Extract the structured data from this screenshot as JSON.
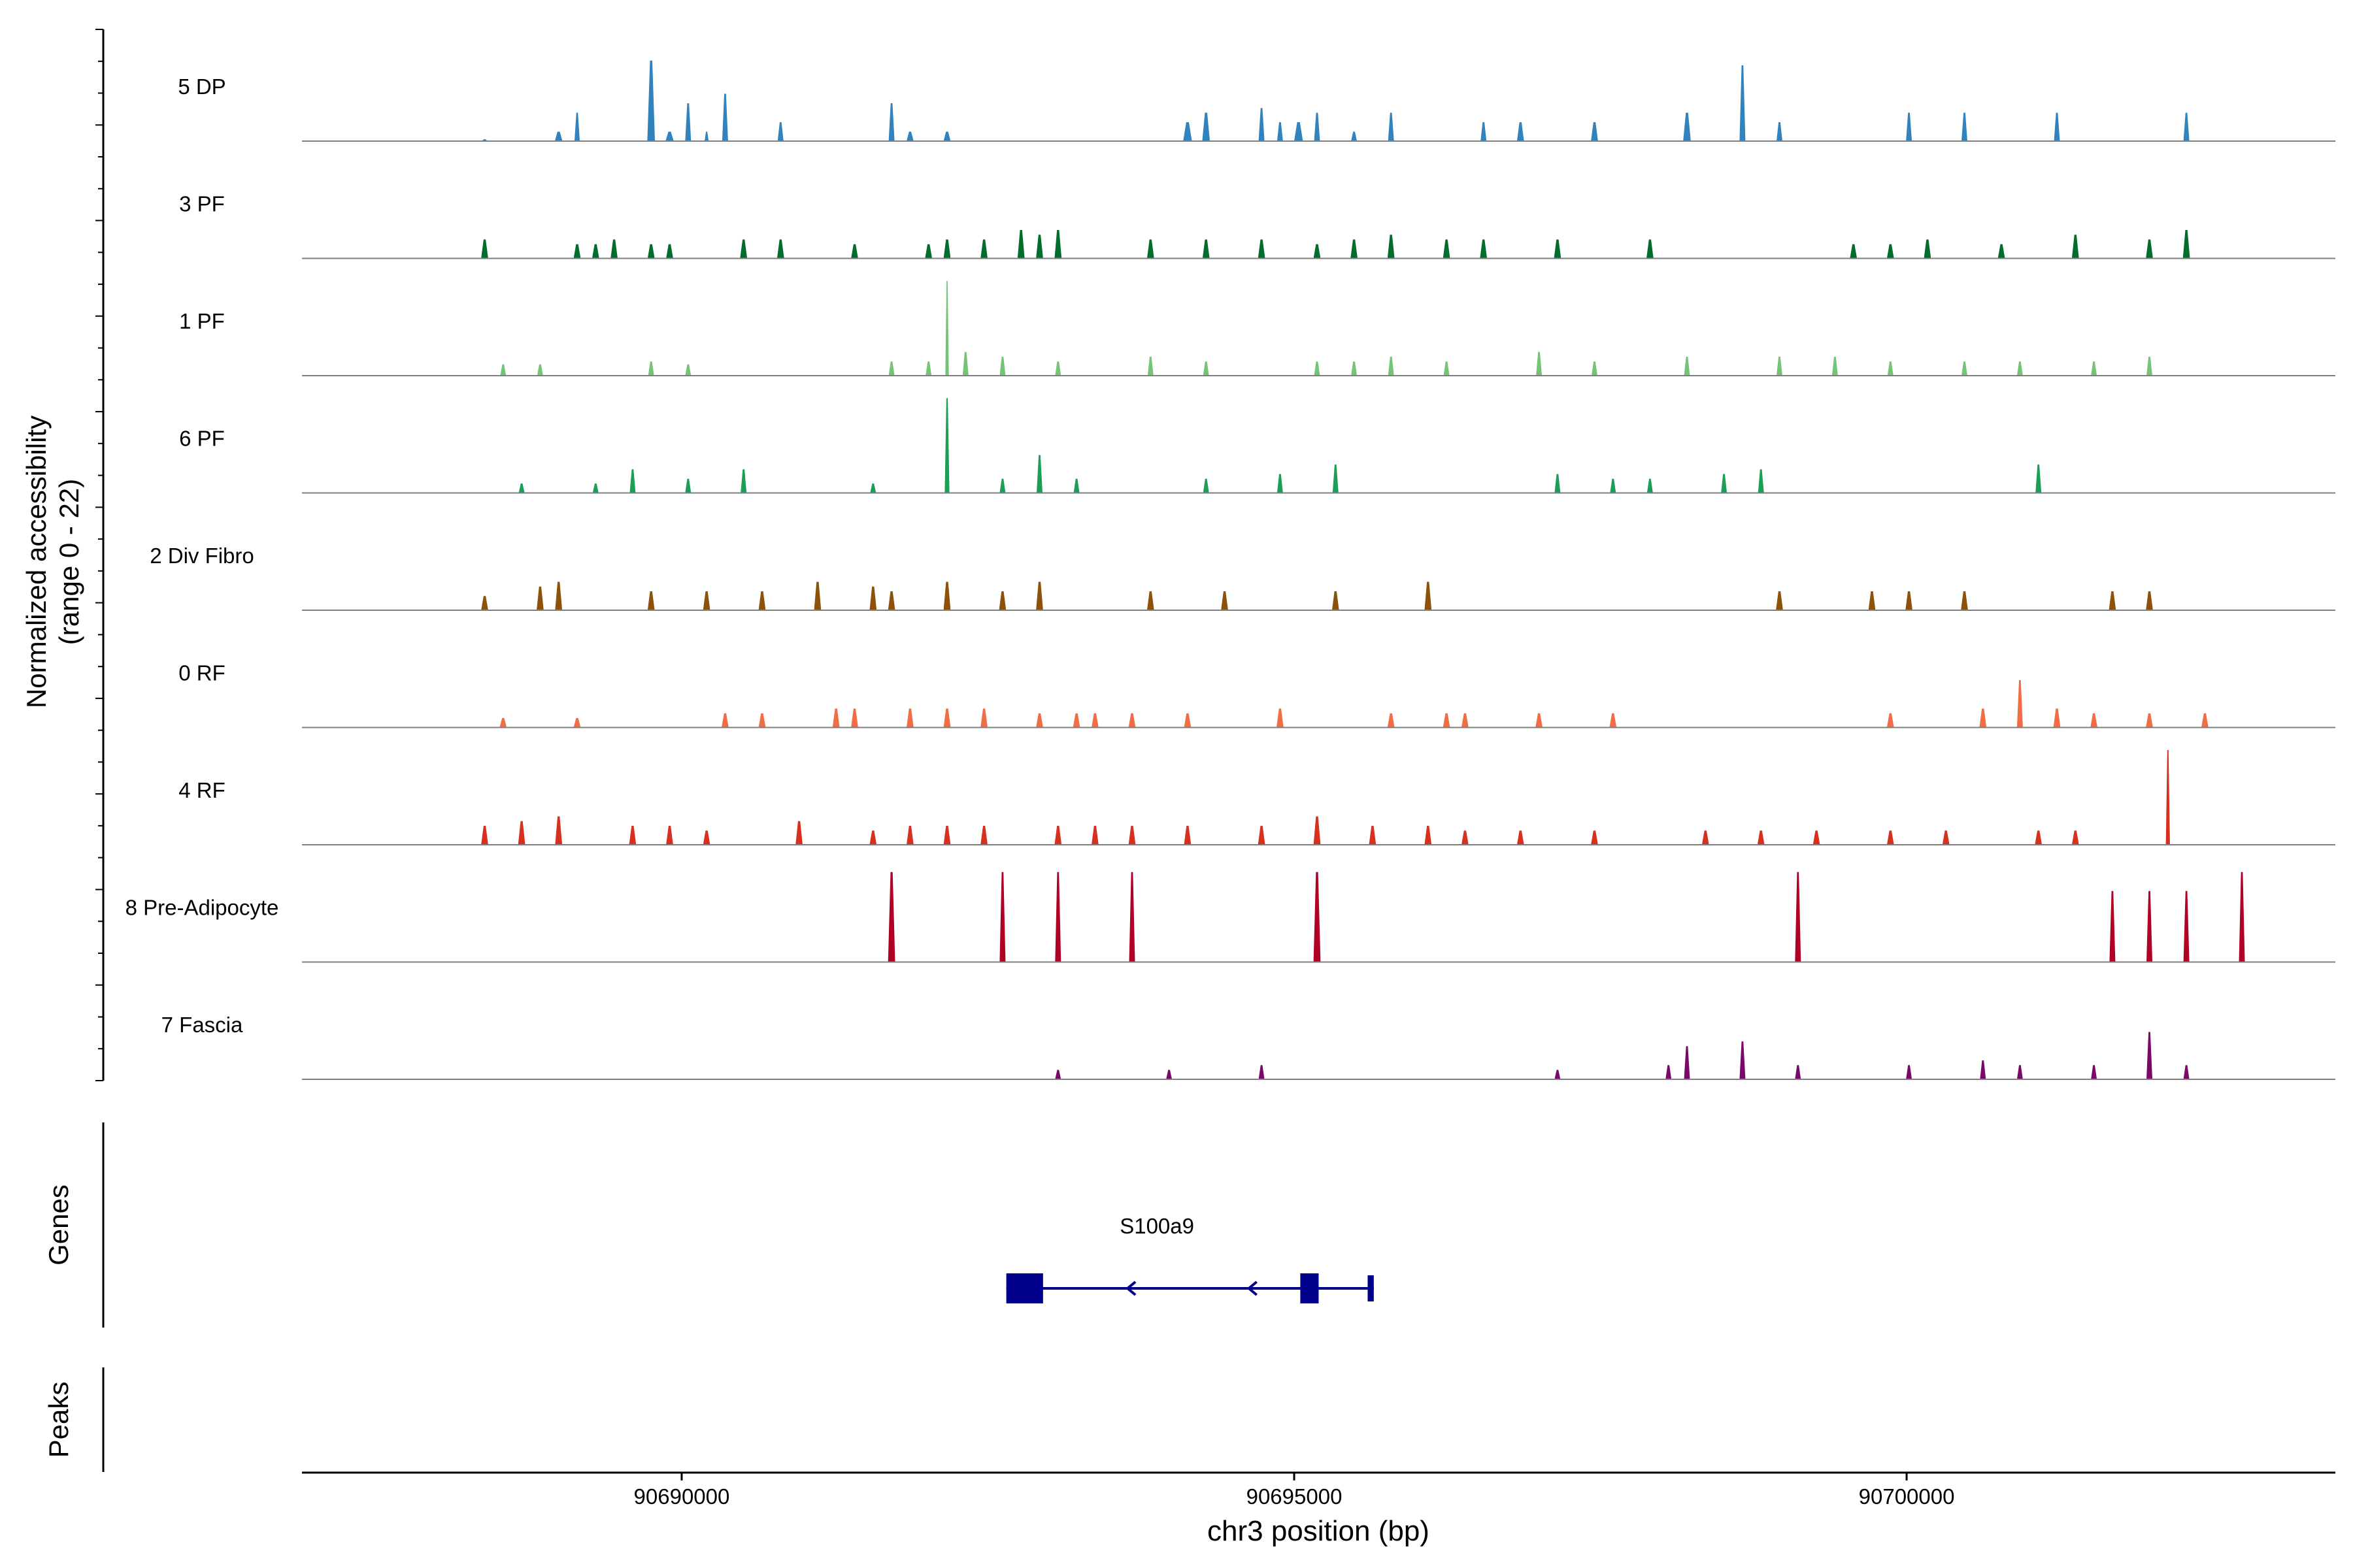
{
  "chart_data": {
    "type": "area",
    "title": "",
    "ylabel_line1": "Normalized accessibility",
    "ylabel_line2": "(range 0 - 22)",
    "xlabel": "chr3 position (bp)",
    "chromosome": "chr3",
    "xlim": [
      90686900,
      90703500
    ],
    "ylim": [
      0,
      22
    ],
    "x_ticks": [
      90690000,
      90695000,
      90700000
    ],
    "x_tick_labels": [
      "90690000",
      "90695000",
      "90700000"
    ],
    "tracks": [
      {
        "name": "5 DP",
        "color": "#3182BD"
      },
      {
        "name": "3 PF",
        "color": "#006D2C"
      },
      {
        "name": "1 PF",
        "color": "#74C476"
      },
      {
        "name": "6 PF",
        "color": "#1B9E55"
      },
      {
        "name": "2 Div Fibro",
        "color": "#8C510A"
      },
      {
        "name": "0 RF",
        "color": "#F16D45"
      },
      {
        "name": "4 RF",
        "color": "#D7301F"
      },
      {
        "name": "8 Pre-Adipocyte",
        "color": "#B00026"
      },
      {
        "name": "7 Fascia",
        "color": "#7A0868"
      }
    ],
    "genes_label": "Genes",
    "peaks_label": "Peaks",
    "gene": {
      "name": "S100a9",
      "strand": "-",
      "color": "#00008B",
      "start": 90692650,
      "end": 90695650,
      "exons": [
        [
          90692650,
          90692950
        ],
        [
          90695050,
          90695200
        ],
        [
          90695600,
          90695650
        ]
      ]
    }
  }
}
